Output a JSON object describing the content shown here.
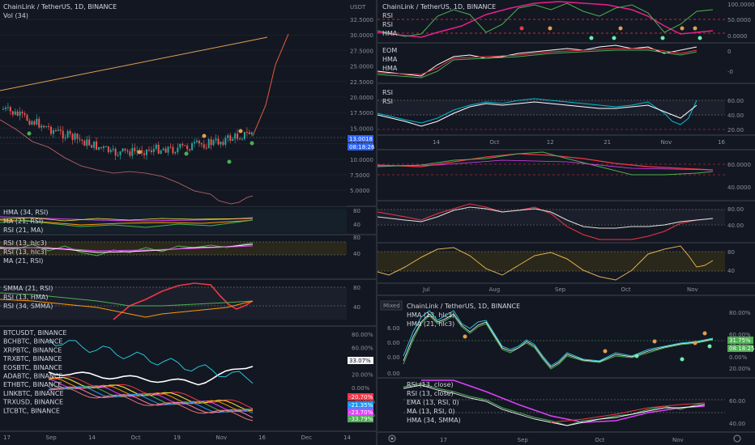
{
  "left": {
    "main": {
      "title": "ChainLink / TetherUS, 1D, BINANCE",
      "vol": "Vol (34)",
      "unit": "USDT",
      "yticks": [
        "32.5000",
        "30.0000",
        "27.5000",
        "25.0000",
        "22.5000",
        "20.0000",
        "17.5000",
        "15.0000",
        "12.5000",
        "10.0000",
        "7.5000",
        "5.0000"
      ],
      "price_label": "13.0018",
      "time_label": "08:18:26"
    },
    "hma": {
      "legend": [
        "HMA (34, RSI)",
        "MA (21, RSI)",
        "RSI (21, MA)"
      ],
      "yticks": [
        "80",
        "40"
      ]
    },
    "rsi": {
      "legend": [
        "RSI (13, hlc3)",
        "RSI (13, hlc3)",
        "MA (21, RSI)"
      ],
      "yticks": [
        "80",
        "40"
      ]
    },
    "smma": {
      "legend": [
        "SMMA (21, RSI)",
        "RSI (13, HMA)",
        "RSI (34, SMMA)"
      ],
      "yticks": [
        "80",
        "40"
      ]
    },
    "compare": {
      "legend": [
        "BTCUSDT, BINANCE",
        "BCHBTC, BINANCE",
        "XRPBTC, BINANCE",
        "TRXBTC, BINANCE",
        "EOSBTC, BINANCE",
        "ADABTC, BINANCE",
        "ETHBTC, BINANCE",
        "LINKBTC, BINANCE",
        "TRXUSD, BINANCE",
        "LTCBTC, BINANCE"
      ],
      "yticks": [
        "80.00%",
        "60.00%",
        "40.00%",
        "20.00%",
        "0.00%",
        "-20.00%",
        "-40.00%"
      ],
      "badges": [
        {
          "text": "33.07%",
          "color": "#f5f5f5",
          "fg": "#131722"
        },
        {
          "text": "-20.70%",
          "color": "#f23645",
          "fg": "#ffffff"
        },
        {
          "text": "-21.35%",
          "color": "#2196f3",
          "fg": "#ffffff"
        },
        {
          "text": "-23.70%",
          "color": "#e040fb",
          "fg": "#ffffff"
        },
        {
          "text": "-33.79%",
          "color": "#4caf50",
          "fg": "#ffffff"
        }
      ]
    },
    "xticks": [
      "17",
      "Sep",
      "14",
      "Oct",
      "19",
      "Nov",
      "16",
      "Dec",
      "14"
    ]
  },
  "right_top": {
    "title": "ChainLink / TetherUS, 1D, BINANCE",
    "p1_legend": [
      "RSI",
      "RSI",
      "HMA"
    ],
    "p1_yticks": [
      "100.0000",
      "50.0000",
      "0.0000"
    ],
    "p2_legend": [
      "EOM",
      "HMA",
      "HMA"
    ],
    "p2_yticks": [
      "0",
      "-0"
    ],
    "p3_legend": [
      "RSI",
      "RSI"
    ],
    "p3_yticks": [
      "60.00",
      "40.00",
      "20.00"
    ],
    "xticks": [
      "14",
      "Oct",
      "12",
      "21",
      "Nov",
      "16"
    ]
  },
  "right_mid": {
    "p1_yticks": [
      "60.0000",
      "40.0000"
    ],
    "p2_yticks": [
      "80.00",
      "40.00"
    ],
    "p3_yticks": [
      "80",
      "40"
    ],
    "xticks": [
      "Jul",
      "Aug",
      "Sep",
      "Oct",
      "Nov"
    ]
  },
  "right_bottom": {
    "mode": "Mixed",
    "title": "ChainLink / TetherUS, 1D, BINANCE",
    "top_legend": [
      "HMA (13, hlc3)",
      "HMA (21, hlc3)"
    ],
    "left_yticks": [
      "6.00",
      "0.00",
      "0.00",
      "0.00"
    ],
    "right_yticks": [
      "80.00%",
      "60.00%",
      "40.00%",
      "20.00%",
      "0.00%"
    ],
    "badges": [
      {
        "text": "31.75%",
        "color": "#4caf50"
      },
      {
        "text": "08:18:25",
        "color": "#4caf50"
      }
    ],
    "bottom_legend": [
      "RSI (13, close)",
      "RSI (13, close)",
      "EMA (13, RSI, 0)",
      "MA (13, RSI, 0)",
      "HMA (34, SMMA)"
    ],
    "bottom_yticks": [
      "60.00",
      "40.00"
    ],
    "xticks": [
      "17",
      "Sep",
      "Oct",
      "Nov"
    ]
  },
  "colors": {
    "bg": "#131722",
    "up": "#26a69a",
    "down": "#ef5350",
    "grid": "#2a2e39"
  }
}
